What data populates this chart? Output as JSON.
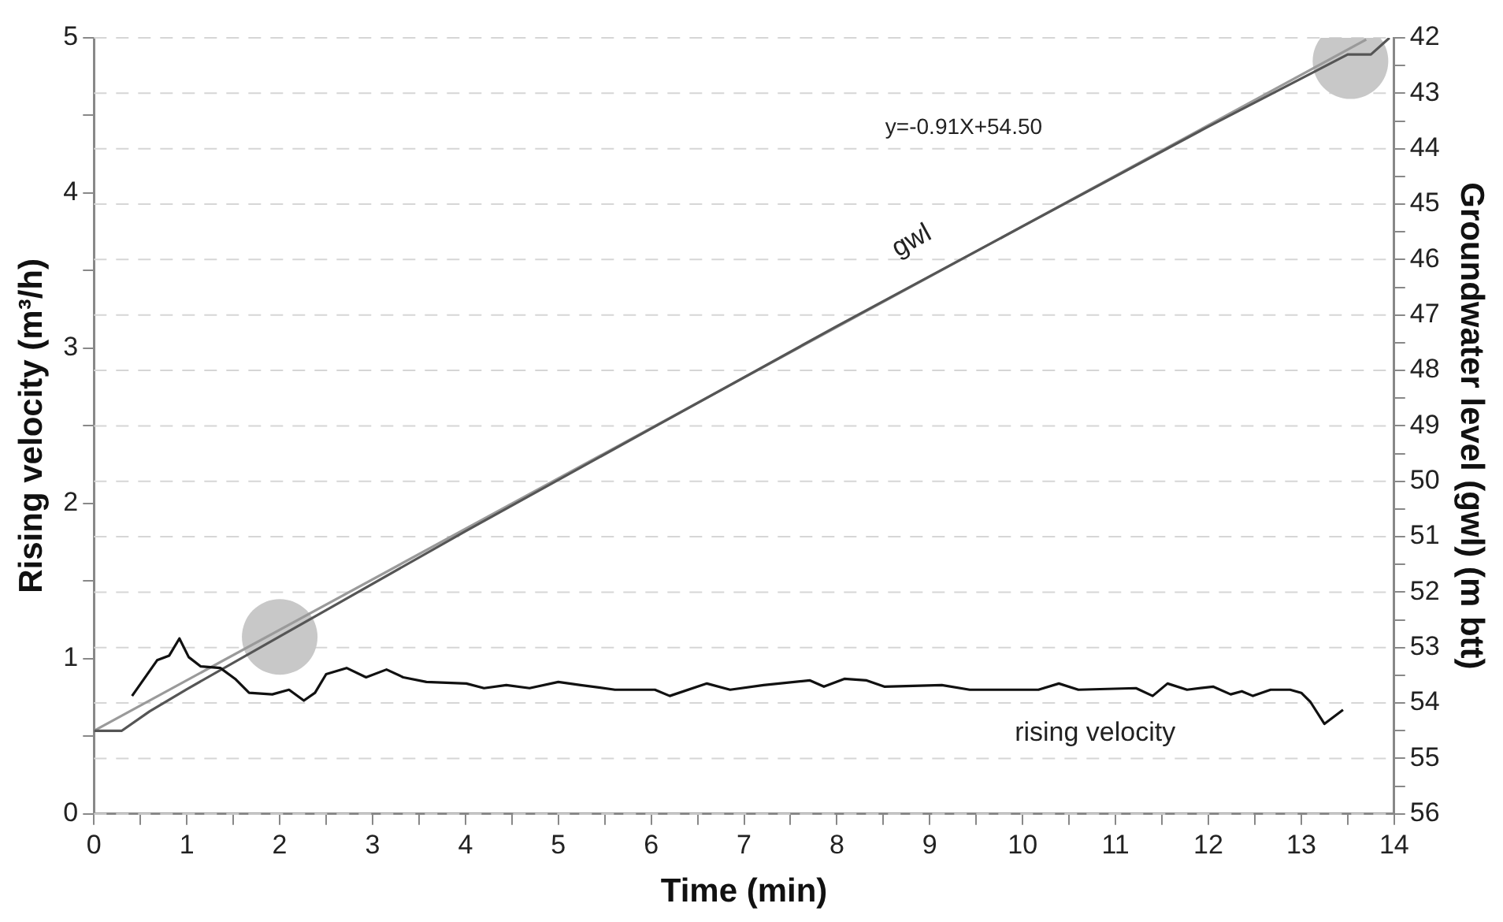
{
  "chart_data": {
    "type": "line",
    "xlabel": "Time (min)",
    "ylabel": "Rising velocity (m³/h)",
    "y2label": "Groundwater level (gwl) (m btt)",
    "xlim": [
      0,
      14
    ],
    "ylim": [
      0,
      5
    ],
    "y2lim": [
      56,
      42
    ],
    "xticks": [
      0,
      {
        "value": 0.5,
        "label": null
      },
      1,
      {
        "value": 1.5,
        "label": null
      },
      2,
      {
        "value": 2.5,
        "label": null
      },
      3,
      {
        "value": 3.5,
        "label": null
      },
      4,
      {
        "value": 4.5,
        "label": null
      },
      5,
      {
        "value": 5.5,
        "label": null
      },
      6,
      {
        "value": 6.5,
        "label": null
      },
      7,
      {
        "value": 7.5,
        "label": null
      },
      8,
      {
        "value": 8.5,
        "label": null
      },
      9,
      {
        "value": 9.5,
        "label": null
      },
      10,
      {
        "value": 10.5,
        "label": null
      },
      11,
      {
        "value": 11.5,
        "label": null
      },
      12,
      {
        "value": 12.5,
        "label": null
      },
      13,
      {
        "value": 13.5,
        "label": null
      },
      14
    ],
    "yticks": [
      0,
      {
        "value": 0.5,
        "label": null
      },
      1,
      {
        "value": 1.5,
        "label": null
      },
      2,
      {
        "value": 2.5,
        "label": null
      },
      3,
      {
        "value": 3.5,
        "label": null
      },
      4,
      {
        "value": 4.5,
        "label": null
      },
      5
    ],
    "y2ticks": [
      42,
      {
        "value": 42.5,
        "label": null
      },
      43,
      {
        "value": 43.5,
        "label": null
      },
      44,
      {
        "value": 44.5,
        "label": null
      },
      45,
      {
        "value": 45.5,
        "label": null
      },
      46,
      {
        "value": 46.5,
        "label": null
      },
      47,
      {
        "value": 47.5,
        "label": null
      },
      48,
      {
        "value": 48.5,
        "label": null
      },
      49,
      {
        "value": 49.5,
        "label": null
      },
      50,
      {
        "value": 50.5,
        "label": null
      },
      51,
      {
        "value": 51.5,
        "label": null
      },
      52,
      {
        "value": 52.5,
        "label": null
      },
      53,
      {
        "value": 53.5,
        "label": null
      },
      54,
      {
        "value": 54.5,
        "label": null
      },
      55,
      {
        "value": 55.5,
        "label": null
      },
      56
    ],
    "grid": "y2",
    "legend": false,
    "marker": "none",
    "line_style": "solid",
    "series": [
      {
        "type": "scatter",
        "marker": "circle",
        "color": "#c8c8c8",
        "x": [
          2.0,
          13.53
        ],
        "values": [
          1.14,
          4.85
        ]
      },
      {
        "color": "#9a9a9a",
        "axis": "y2",
        "x": [
          0,
          13.7
        ],
        "values": [
          54.5,
          42.03
        ]
      },
      {
        "color": "#555555",
        "axis": "y2",
        "x": [
          0,
          0.3,
          0.6,
          1,
          2,
          4,
          6,
          8,
          10,
          12,
          13.5,
          13.75,
          13.95
        ],
        "values": [
          54.5,
          54.5,
          54.15,
          53.75,
          52.8,
          50.9,
          49.05,
          47.2,
          45.4,
          43.6,
          42.3,
          42.3,
          42.0
        ]
      },
      {
        "color": "#111111",
        "x": [
          0.41,
          0.68,
          0.81,
          0.92,
          1.02,
          1.15,
          1.36,
          1.52,
          1.67,
          1.92,
          2.1,
          2.26,
          2.38,
          2.5,
          2.72,
          2.93,
          3.15,
          3.33,
          3.58,
          4.01,
          4.2,
          4.44,
          4.69,
          5.0,
          5.24,
          5.61,
          6.04,
          6.2,
          6.6,
          6.85,
          7.21,
          7.71,
          7.86,
          8.08,
          8.32,
          8.51,
          9.13,
          9.43,
          10.17,
          10.39,
          10.6,
          11.22,
          11.4,
          11.56,
          11.77,
          12.05,
          12.24,
          12.36,
          12.48,
          12.67,
          12.88,
          13.0,
          13.1,
          13.25,
          13.45
        ],
        "values": [
          0.76,
          0.99,
          1.02,
          1.13,
          1.01,
          0.95,
          0.94,
          0.87,
          0.78,
          0.77,
          0.8,
          0.73,
          0.78,
          0.9,
          0.94,
          0.88,
          0.93,
          0.88,
          0.85,
          0.84,
          0.81,
          0.83,
          0.81,
          0.85,
          0.83,
          0.8,
          0.8,
          0.76,
          0.84,
          0.8,
          0.83,
          0.86,
          0.82,
          0.87,
          0.86,
          0.82,
          0.83,
          0.8,
          0.8,
          0.84,
          0.8,
          0.81,
          0.76,
          0.84,
          0.8,
          0.82,
          0.77,
          0.79,
          0.76,
          0.8,
          0.8,
          0.78,
          0.72,
          0.58,
          0.67
        ]
      }
    ],
    "annotations": [
      "y=-0.91X+54.50",
      "gwl",
      "rising velocity"
    ]
  }
}
